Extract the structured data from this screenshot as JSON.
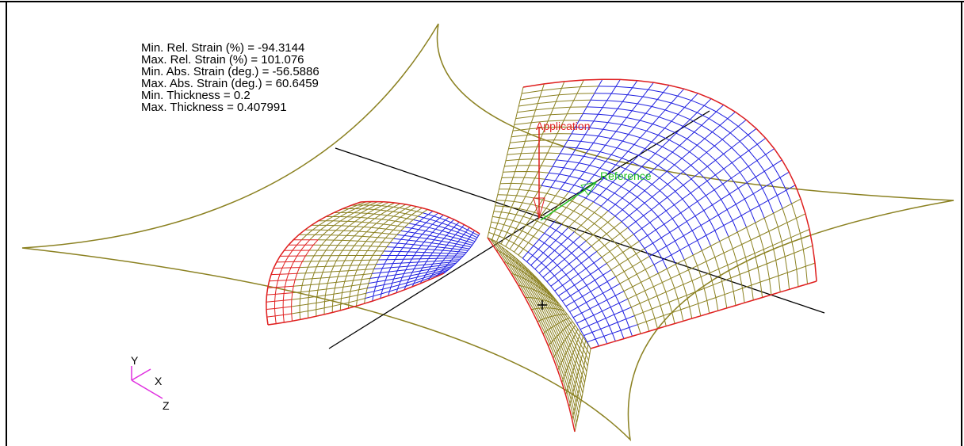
{
  "stats": [
    "Min. Rel. Strain (%) = -94.3144",
    "Max. Rel. Strain (%) = 101.076",
    "Min. Abs. Strain (deg.) = -56.5886",
    "Max. Abs. Strain (deg.) = 60.6459",
    "Min. Thickness = 0.2",
    "Max. Thickness = 0.407991"
  ],
  "vectors": {
    "application": "Application",
    "reference": "Reference"
  },
  "triad": {
    "y": "Y",
    "x": "X",
    "z": "Z"
  }
}
